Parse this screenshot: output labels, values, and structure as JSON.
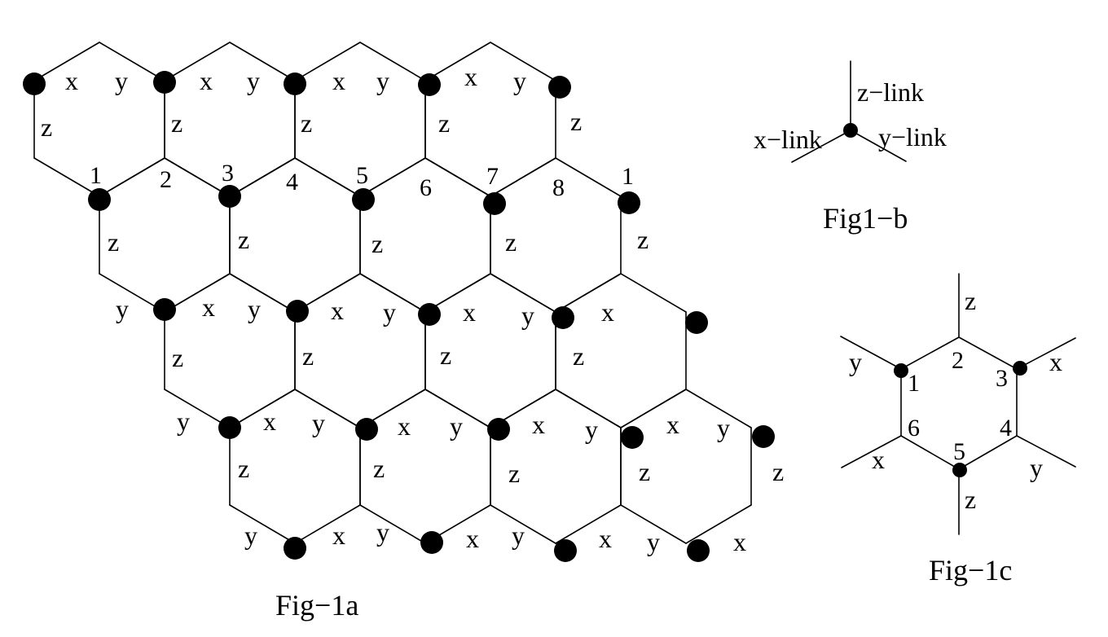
{
  "colors": {
    "line": "#000000",
    "dot": "#000000",
    "background": "#ffffff"
  },
  "fig1a": {
    "caption": "Fig−1a",
    "numbers": [
      "1",
      "2",
      "3",
      "4",
      "5",
      "6",
      "7",
      "8",
      "1"
    ],
    "rows": [
      {
        "labels": [
          "x",
          "y",
          "x",
          "y",
          "x",
          "y",
          "x",
          "y"
        ],
        "z": [
          "z",
          "z",
          "z",
          "z",
          "z"
        ]
      },
      {
        "labels": [],
        "z": [
          "z",
          "z",
          "z",
          "z",
          "z"
        ]
      },
      {
        "labels": [
          "y",
          "x",
          "y",
          "x",
          "y",
          "x",
          "y",
          "x"
        ],
        "z": [
          "z",
          "z",
          "z",
          "z"
        ]
      },
      {
        "labels": [
          "y",
          "x",
          "y",
          "x",
          "y",
          "x",
          "y",
          "x",
          "y"
        ],
        "z": [
          "z",
          "z",
          "z",
          "z",
          "z"
        ]
      },
      {
        "labels": [
          "y",
          "x",
          "y",
          "x",
          "y",
          "x",
          "y",
          "x"
        ],
        "z": []
      }
    ]
  },
  "fig1b": {
    "caption": "Fig1−b",
    "labels": [
      "z−link",
      "x−link",
      "y−link"
    ]
  },
  "fig1c": {
    "caption": "Fig−1c",
    "numbers": [
      "1",
      "2",
      "3",
      "4",
      "5",
      "6"
    ],
    "labels": [
      "z",
      "y",
      "x",
      "x",
      "y",
      "z"
    ]
  }
}
